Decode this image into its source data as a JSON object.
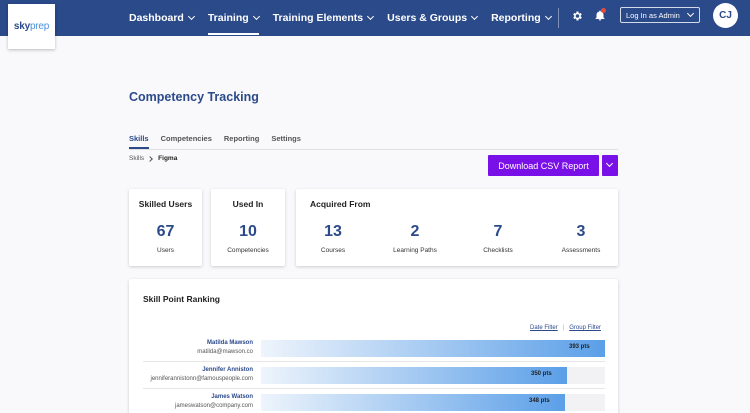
{
  "brand": {
    "logo_sky": "sky",
    "logo_prep": "prep"
  },
  "nav": {
    "items": [
      {
        "label": "Dashboard"
      },
      {
        "label": "Training"
      },
      {
        "label": "Training Elements"
      },
      {
        "label": "Users & Groups"
      },
      {
        "label": "Reporting"
      }
    ],
    "active": "Training",
    "login_as": "Log In as Admin",
    "avatar_initials": "CJ",
    "icons": [
      "gear-icon",
      "bell-icon"
    ]
  },
  "page": {
    "title": "Competency Tracking",
    "tabs": [
      {
        "label": "Skills"
      },
      {
        "label": "Competencies"
      },
      {
        "label": "Reporting"
      },
      {
        "label": "Settings"
      }
    ],
    "active_tab": "Skills",
    "breadcrumb": {
      "parent": "Skills",
      "current": "Figma"
    },
    "download_label": "Download CSV Report"
  },
  "cards": {
    "skilled_users": {
      "title": "Skilled Users",
      "value": "67",
      "label": "Users"
    },
    "used_in": {
      "title": "Used In",
      "value": "10",
      "label": "Competencies"
    },
    "acquired_from": {
      "title": "Acquired From",
      "stats": [
        {
          "value": "13",
          "label": "Courses"
        },
        {
          "value": "2",
          "label": "Learning Paths"
        },
        {
          "value": "7",
          "label": "Checklists"
        },
        {
          "value": "3",
          "label": "Assessments"
        }
      ]
    }
  },
  "ranking": {
    "title": "Skill Point Ranking",
    "date_filter": "Date Filter",
    "separator": "|",
    "group_filter": "Group Filter",
    "rows": [
      {
        "name": "Matilda Mawson",
        "email": "matilda@mawson.co",
        "points": "393 pts",
        "share": 1.0
      },
      {
        "name": "Jennifer Anniston",
        "email": "jenniferannistonn@famouspeople.com",
        "points": "350 pts",
        "share": 0.89
      },
      {
        "name": "James Watson",
        "email": "jameswatson@company.com",
        "points": "348 pts",
        "share": 0.885
      }
    ]
  },
  "colors": {
    "nav_bg": "#2b4a8a",
    "accent_purple": "#7a10e8",
    "bar_blue": "#5b9fe8",
    "title_blue": "#2b4a8a"
  }
}
